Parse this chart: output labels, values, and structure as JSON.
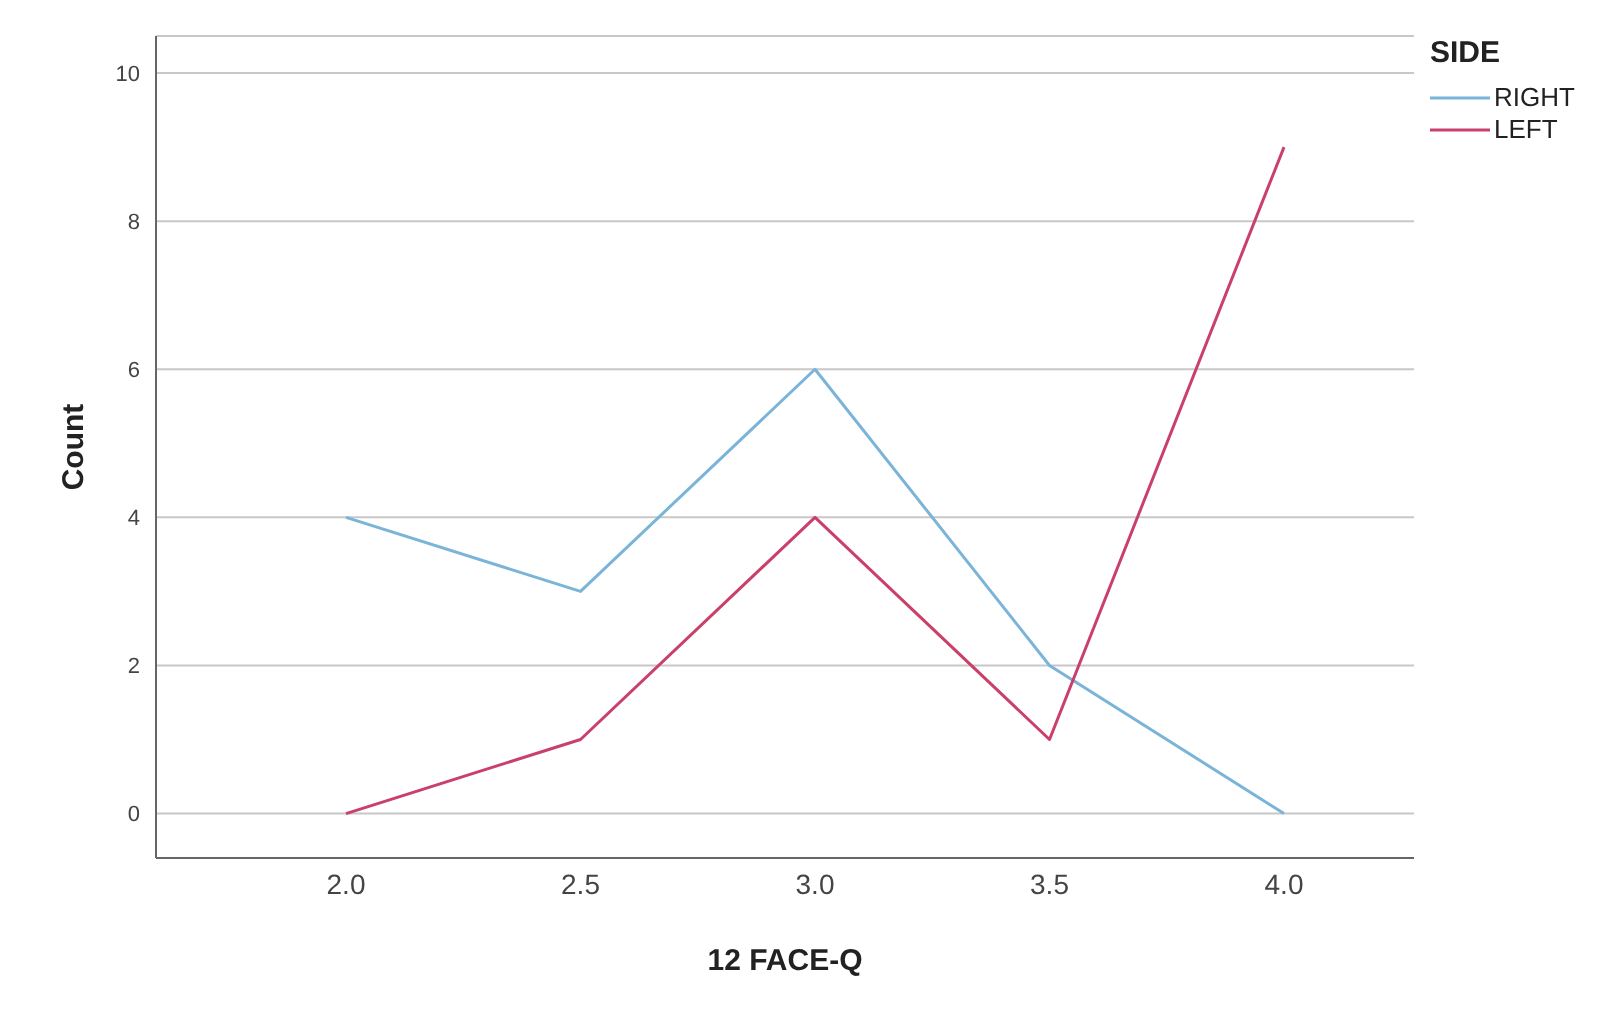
{
  "chart_data": {
    "type": "line",
    "xlabel": "12 FACE-Q",
    "ylabel": "Count",
    "legend_title": "SIDE",
    "categories": [
      "2.0",
      "2.5",
      "3.0",
      "3.5",
      "4.0"
    ],
    "series": [
      {
        "name": "RIGHT",
        "color": "#7ab4d8",
        "values": [
          4,
          3,
          6,
          2,
          0
        ]
      },
      {
        "name": "LEFT",
        "color": "#c9406b",
        "values": [
          0,
          1,
          4,
          1,
          9
        ]
      }
    ],
    "ylim": [
      -0.6,
      10.5
    ],
    "yticks": [
      0,
      2,
      4,
      6,
      8,
      10
    ],
    "grid": "y",
    "legend": "top right",
    "marker": "none",
    "line_style": "solid"
  }
}
